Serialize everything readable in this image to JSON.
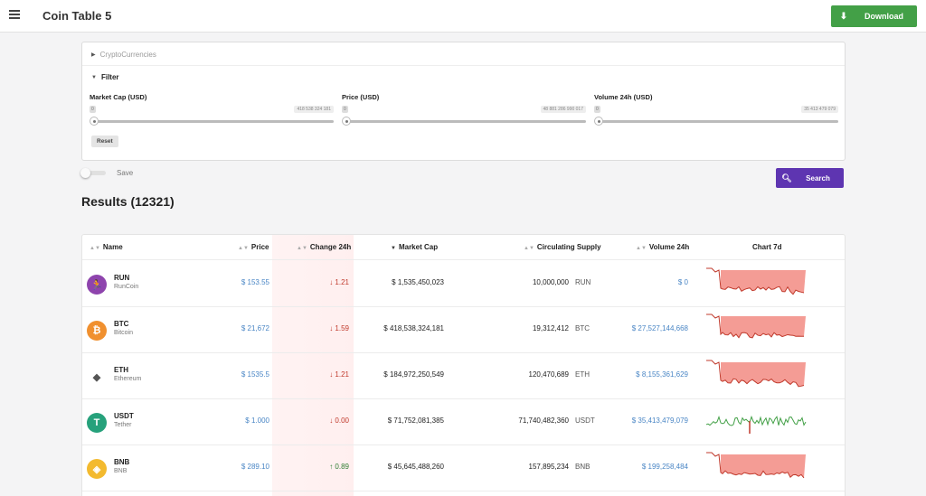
{
  "header": {
    "title": "Coin Table 5",
    "download_label": "Download"
  },
  "panel": {
    "crypto_label": "CryptoCurrencies",
    "filter_label": "Filter",
    "sliders": [
      {
        "label": "Market Cap (USD)",
        "min": "0",
        "max": "418 538 324 181"
      },
      {
        "label": "Price (USD)",
        "min": "0",
        "max": "48 881 286 990 017"
      },
      {
        "label": "Volume 24h (USD)",
        "min": "0",
        "max": "35 413 479 079"
      }
    ],
    "reset_label": "Reset"
  },
  "controls": {
    "save_label": "Save",
    "search_label": "Search"
  },
  "results": {
    "title": "Results (12321)"
  },
  "table": {
    "headers": {
      "name": "Name",
      "price": "Price",
      "change": "Change 24h",
      "market_cap": "Market Cap",
      "supply": "Circulating Supply",
      "volume": "Volume 24h",
      "chart": "Chart 7d"
    },
    "rows": [
      {
        "symbol": "RUN",
        "name": "RunCoin",
        "icon": "runner-icon",
        "icon_color": "#8e44ad",
        "price": "$ 153.55",
        "change": "1.21",
        "change_dir": "down",
        "market_cap": "$ 1,535,450,023",
        "supply": "10,000,000",
        "supply_symbol": "RUN",
        "volume": "$ 0",
        "spark": "red"
      },
      {
        "symbol": "BTC",
        "name": "Bitcoin",
        "icon": "bitcoin-icon",
        "icon_color": "#f0902f",
        "price": "$ 21,672",
        "change": "1.59",
        "change_dir": "down",
        "market_cap": "$ 418,538,324,181",
        "supply": "19,312,412",
        "supply_symbol": "BTC",
        "volume": "$ 27,527,144,668",
        "spark": "red"
      },
      {
        "symbol": "ETH",
        "name": "Ethereum",
        "icon": "ethereum-icon",
        "icon_color": "#ffffff",
        "price": "$ 1535.5",
        "change": "1.21",
        "change_dir": "down",
        "market_cap": "$ 184,972,250,549",
        "supply": "120,470,689",
        "supply_symbol": "ETH",
        "volume": "$ 8,155,361,629",
        "spark": "red"
      },
      {
        "symbol": "USDT",
        "name": "Tether",
        "icon": "tether-icon",
        "icon_color": "#26a17b",
        "price": "$ 1.000",
        "change": "0.00",
        "change_dir": "down",
        "market_cap": "$ 71,752,081,385",
        "supply": "71,740,482,360",
        "supply_symbol": "USDT",
        "volume": "$ 35,413,479,079",
        "spark": "mixed"
      },
      {
        "symbol": "BNB",
        "name": "BNB",
        "icon": "bnb-icon",
        "icon_color": "#f3ba2f",
        "price": "$ 289.10",
        "change": "0.89",
        "change_dir": "up",
        "market_cap": "$ 45,645,488,260",
        "supply": "157,895,234",
        "supply_symbol": "BNB",
        "volume": "$ 199,258,484",
        "spark": "red"
      }
    ]
  },
  "colors": {
    "download": "#43a047",
    "search": "#5e35b1",
    "link_blue": "#4a86c5",
    "down": "#c0392b",
    "up": "#2e7d32"
  }
}
